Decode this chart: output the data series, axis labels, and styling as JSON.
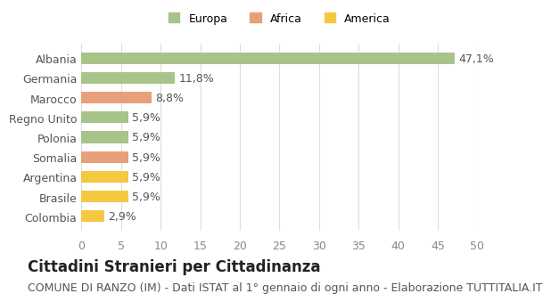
{
  "categories": [
    "Colombia",
    "Brasile",
    "Argentina",
    "Somalia",
    "Polonia",
    "Regno Unito",
    "Marocco",
    "Germania",
    "Albania"
  ],
  "values": [
    2.9,
    5.9,
    5.9,
    5.9,
    5.9,
    5.9,
    8.8,
    11.8,
    47.1
  ],
  "labels": [
    "2,9%",
    "5,9%",
    "5,9%",
    "5,9%",
    "5,9%",
    "5,9%",
    "8,8%",
    "11,8%",
    "47,1%"
  ],
  "colors": [
    "#f5c842",
    "#f5c842",
    "#f5c842",
    "#e8a07a",
    "#a8c48a",
    "#a8c48a",
    "#e8a07a",
    "#a8c48a",
    "#a8c48a"
  ],
  "legend": [
    {
      "label": "Europa",
      "color": "#a8c48a"
    },
    {
      "label": "Africa",
      "color": "#e8a07a"
    },
    {
      "label": "America",
      "color": "#f5c842"
    }
  ],
  "xlim": [
    0,
    50
  ],
  "xticks": [
    0,
    5,
    10,
    15,
    20,
    25,
    30,
    35,
    40,
    45,
    50
  ],
  "title_bold": "Cittadini Stranieri per Cittadinanza",
  "subtitle": "COMUNE DI RANZO (IM) - Dati ISTAT al 1° gennaio di ogni anno - Elaborazione TUTTITALIA.IT",
  "bg_color": "#ffffff",
  "grid_color": "#dddddd",
  "title_fontsize": 12,
  "subtitle_fontsize": 9,
  "label_fontsize": 9,
  "tick_fontsize": 9,
  "bar_height": 0.6
}
